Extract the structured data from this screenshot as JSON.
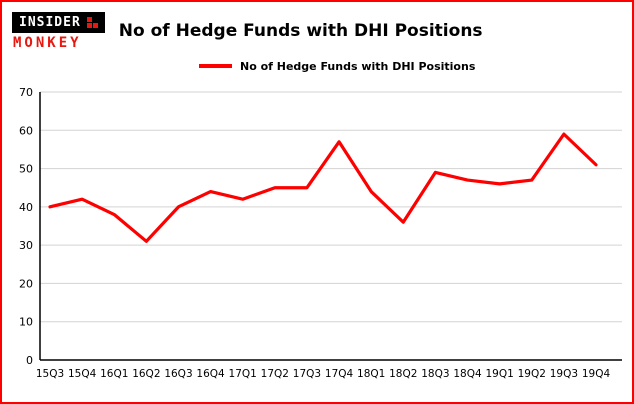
{
  "brand": {
    "name_top": "INSIDER",
    "name_bottom": "MONKEY",
    "accent_color": "#e8170f"
  },
  "header": {
    "title": "No of Hedge Funds with DHI Positions"
  },
  "legend": {
    "label": "No of Hedge Funds with DHI Positions"
  },
  "chart_data": {
    "type": "line",
    "title": "No of Hedge Funds with DHI Positions",
    "categories": [
      "15Q3",
      "15Q4",
      "16Q1",
      "16Q2",
      "16Q3",
      "16Q4",
      "17Q1",
      "17Q2",
      "17Q3",
      "17Q4",
      "18Q1",
      "18Q2",
      "18Q3",
      "18Q4",
      "19Q1",
      "19Q2",
      "19Q3",
      "19Q4"
    ],
    "values": [
      40,
      42,
      38,
      31,
      40,
      44,
      42,
      45,
      45,
      57,
      44,
      36,
      49,
      47,
      46,
      47,
      59,
      51
    ],
    "xlabel": "",
    "ylabel": "",
    "ylim": [
      0,
      70
    ],
    "yticks": [
      0,
      10,
      20,
      30,
      40,
      50,
      60,
      70
    ],
    "grid": true,
    "legend_position": "top-left",
    "series_color": "#fe0000",
    "grid_color": "#d3d3d3",
    "axis_color": "#000000",
    "border_color": "#fe0000"
  }
}
